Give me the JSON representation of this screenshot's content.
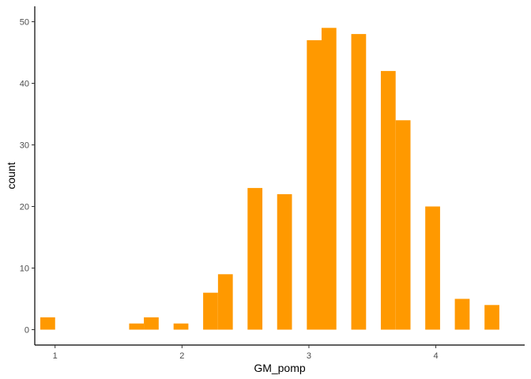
{
  "chart_data": {
    "type": "bar",
    "title": "",
    "xlabel": "GM_pomp",
    "ylabel": "count",
    "xlim": [
      0.84,
      4.7
    ],
    "ylim": [
      -2.5,
      52.5
    ],
    "xticks": [
      1,
      2,
      3,
      4
    ],
    "yticks": [
      0,
      10,
      20,
      30,
      40,
      50
    ],
    "grid": false,
    "bar_color": "#FF9900",
    "bin_width": 0.1167,
    "bins": [
      {
        "x": 0.942,
        "count": 2
      },
      {
        "x": 1.058,
        "count": 0
      },
      {
        "x": 1.175,
        "count": 0
      },
      {
        "x": 1.292,
        "count": 0
      },
      {
        "x": 1.408,
        "count": 0
      },
      {
        "x": 1.525,
        "count": 0
      },
      {
        "x": 1.642,
        "count": 1
      },
      {
        "x": 1.758,
        "count": 2
      },
      {
        "x": 1.875,
        "count": 0
      },
      {
        "x": 1.992,
        "count": 1
      },
      {
        "x": 2.108,
        "count": 0
      },
      {
        "x": 2.225,
        "count": 6
      },
      {
        "x": 2.342,
        "count": 9
      },
      {
        "x": 2.458,
        "count": 0
      },
      {
        "x": 2.575,
        "count": 23
      },
      {
        "x": 2.692,
        "count": 0
      },
      {
        "x": 2.808,
        "count": 22
      },
      {
        "x": 2.925,
        "count": 0
      },
      {
        "x": 3.042,
        "count": 47
      },
      {
        "x": 3.158,
        "count": 49
      },
      {
        "x": 3.275,
        "count": 0
      },
      {
        "x": 3.392,
        "count": 48
      },
      {
        "x": 3.508,
        "count": 0
      },
      {
        "x": 3.625,
        "count": 42
      },
      {
        "x": 3.742,
        "count": 34
      },
      {
        "x": 3.858,
        "count": 0
      },
      {
        "x": 3.975,
        "count": 20
      },
      {
        "x": 4.092,
        "count": 0
      },
      {
        "x": 4.208,
        "count": 5
      },
      {
        "x": 4.325,
        "count": 0
      },
      {
        "x": 4.442,
        "count": 4
      }
    ]
  }
}
